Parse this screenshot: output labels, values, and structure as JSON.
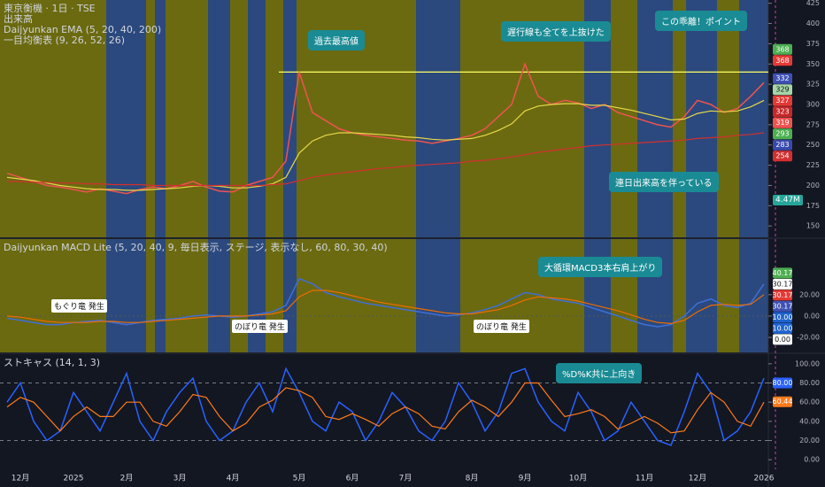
{
  "chart_data": [
    {
      "type": "line",
      "title": "東京衡機 · 1日 · TSE",
      "subtitles": [
        "出来高",
        "Daijyunkan EMA (5, 20, 40, 200)",
        "一目均衡表 (9, 26, 52, 26)"
      ],
      "categories": [
        null,
        "12月",
        null,
        null,
        null,
        "2025",
        null,
        null,
        null,
        "2月",
        null,
        null,
        null,
        "3月",
        null,
        null,
        null,
        "4月",
        null,
        null,
        null,
        null,
        "5月",
        null,
        null,
        null,
        "6月",
        null,
        null,
        null,
        "7月",
        null,
        null,
        null,
        null,
        "8月",
        null,
        null,
        null,
        "9月",
        null,
        null,
        null,
        "10月",
        null,
        null,
        null,
        null,
        "11月",
        null,
        null,
        null,
        "12月",
        null,
        null,
        null,
        null,
        "2026"
      ],
      "series": [
        {
          "color": "#ef5350",
          "values": [
            215,
            210,
            205,
            200,
            198,
            195,
            192,
            196,
            193,
            190,
            195,
            198,
            196,
            200,
            205,
            198,
            193,
            192,
            200,
            205,
            210,
            230,
            340,
            290,
            280,
            270,
            265,
            262,
            260,
            258,
            256,
            255,
            252,
            255,
            258,
            262,
            270,
            285,
            300,
            350,
            310,
            300,
            305,
            302,
            295,
            300,
            290,
            285,
            280,
            275,
            272,
            285,
            305,
            300,
            290,
            295,
            310,
            327
          ]
        },
        {
          "color": "#e8d84a",
          "values": [
            210,
            208,
            206,
            203,
            200,
            198,
            196,
            195,
            195,
            194,
            194,
            195,
            196,
            197,
            199,
            200,
            199,
            197,
            197,
            199,
            202,
            210,
            240,
            255,
            262,
            265,
            265,
            264,
            263,
            262,
            260,
            259,
            257,
            256,
            257,
            258,
            262,
            268,
            276,
            292,
            298,
            300,
            301,
            301,
            299,
            299,
            296,
            293,
            289,
            285,
            281,
            282,
            289,
            292,
            291,
            292,
            297,
            305
          ]
        },
        {
          "color": "#d32f2f",
          "values": [
            205,
            205,
            204,
            204,
            203,
            203,
            202,
            202,
            201,
            201,
            201,
            200,
            200,
            200,
            200,
            200,
            200,
            200,
            200,
            200,
            201,
            202,
            206,
            210,
            213,
            215,
            217,
            219,
            221,
            222,
            224,
            225,
            226,
            227,
            228,
            230,
            231,
            233,
            235,
            238,
            241,
            243,
            245,
            247,
            249,
            250,
            251,
            252,
            253,
            254,
            255,
            256,
            258,
            259,
            260,
            262,
            263,
            265
          ]
        }
      ],
      "ylim": [
        136,
        429
      ],
      "yticks": [
        150,
        175,
        200,
        225,
        250,
        275,
        300,
        325,
        350,
        375,
        400,
        425
      ],
      "reference_line": 340,
      "price_labels": [
        {
          "value": 368,
          "color": "#4caf50"
        },
        {
          "value": 368,
          "color": "#e53935"
        },
        {
          "value": 332,
          "color": "#3f51b5"
        },
        {
          "value": 329,
          "color": "#a5d6a7"
        },
        {
          "value": 327,
          "color": "#e53935"
        },
        {
          "value": 323,
          "color": "#c62828"
        },
        {
          "value": 319,
          "color": "#ef5350"
        },
        {
          "value": 293,
          "color": "#4caf50"
        },
        {
          "value": 283,
          "color": "#3949ab"
        },
        {
          "value": 254,
          "color": "#d32f2f"
        }
      ],
      "volume_label": "4.47M",
      "annotations": [
        "過去最高値",
        "遅行線も全てを上抜けた",
        "この乖離！ポイント",
        "連日出来高を伴っている"
      ]
    },
    {
      "type": "line",
      "title": "Daijyunkan MACD Lite (5, 20, 40, 9, 毎日表示, ステージ, 表示なし, 60, 80, 30, 40)",
      "series": [
        {
          "color": "#3f6fd8",
          "values": [
            -2,
            -4,
            -6,
            -8,
            -8,
            -6,
            -5,
            -4,
            -6,
            -8,
            -6,
            -4,
            -3,
            -2,
            0,
            1,
            0,
            -1,
            0,
            2,
            4,
            10,
            35,
            30,
            22,
            18,
            15,
            12,
            10,
            8,
            6,
            4,
            2,
            0,
            1,
            3,
            6,
            10,
            16,
            22,
            20,
            16,
            14,
            12,
            8,
            4,
            0,
            -4,
            -8,
            -10,
            -8,
            0,
            12,
            16,
            10,
            8,
            12,
            30
          ]
        },
        {
          "color": "#ef6c00",
          "values": [
            0,
            -1,
            -3,
            -5,
            -6,
            -6,
            -6,
            -5,
            -5,
            -6,
            -6,
            -5,
            -4,
            -3,
            -2,
            -1,
            0,
            0,
            0,
            1,
            2,
            5,
            18,
            24,
            24,
            22,
            19,
            16,
            13,
            11,
            9,
            7,
            5,
            3,
            2,
            2,
            4,
            6,
            10,
            15,
            18,
            17,
            16,
            14,
            11,
            8,
            5,
            1,
            -3,
            -6,
            -7,
            -4,
            4,
            10,
            11,
            10,
            11,
            20
          ]
        }
      ],
      "ylim": [
        -34,
        72
      ],
      "yticks": [
        {
          "value": -20,
          "label": "-20.00"
        },
        {
          "value": 0,
          "label": "0.00"
        },
        {
          "value": 20,
          "label": "20.00"
        }
      ],
      "price_labels": [
        {
          "value": 40.17,
          "color": "#4caf50"
        },
        {
          "value": 30.17,
          "color": "#ffffff"
        },
        {
          "value": 30.17,
          "color": "#e53935"
        },
        {
          "value": 30.17,
          "color": "#3f51b5"
        },
        {
          "value": 10,
          "label": "10.00",
          "color": "#1e63d0"
        },
        {
          "value": 10,
          "label": "10.00",
          "color": "#1e63d0"
        },
        {
          "value": 0,
          "label": "0.00",
          "color": "#ffffff"
        }
      ],
      "annotations": [
        "大循環MACD3本右肩上がり",
        "もぐり竜 発生",
        "のぼり竜 発生",
        "のぼり竜 発生"
      ]
    },
    {
      "type": "line",
      "title": "ストキャス (14, 1, 3)",
      "series": [
        {
          "color": "#2962ff",
          "values": [
            60,
            80,
            40,
            20,
            30,
            70,
            50,
            30,
            60,
            90,
            40,
            20,
            50,
            70,
            85,
            40,
            20,
            30,
            60,
            80,
            50,
            95,
            70,
            40,
            30,
            60,
            50,
            20,
            40,
            70,
            55,
            30,
            20,
            40,
            80,
            60,
            30,
            50,
            90,
            95,
            60,
            40,
            30,
            70,
            50,
            20,
            30,
            60,
            40,
            20,
            15,
            50,
            90,
            70,
            20,
            30,
            50,
            85
          ]
        },
        {
          "color": "#ff7a1a",
          "values": [
            55,
            65,
            60,
            45,
            30,
            45,
            55,
            45,
            45,
            60,
            60,
            40,
            35,
            50,
            68,
            65,
            45,
            30,
            38,
            55,
            62,
            75,
            72,
            65,
            45,
            42,
            48,
            42,
            35,
            48,
            55,
            48,
            35,
            32,
            50,
            62,
            55,
            45,
            60,
            80,
            80,
            62,
            45,
            48,
            52,
            45,
            32,
            38,
            45,
            38,
            28,
            30,
            52,
            70,
            60,
            40,
            35,
            60
          ]
        }
      ],
      "ylim": [
        -10,
        110
      ],
      "yticks": [
        {
          "value": 0,
          "label": "0.00"
        },
        {
          "value": 20,
          "label": "20.00"
        },
        {
          "value": 40,
          "label": "40.00"
        },
        {
          "value": 60,
          "label": "60.00"
        },
        {
          "value": 80,
          "label": "80.00"
        },
        {
          "value": 100,
          "label": "100.00"
        }
      ],
      "price_labels": [
        {
          "value": 80,
          "label": "80.00",
          "color": "#2962ff"
        },
        {
          "value": 60.44,
          "color": "#ff7a1a"
        }
      ],
      "annotations": [
        "%D%K共に上向き"
      ]
    }
  ]
}
